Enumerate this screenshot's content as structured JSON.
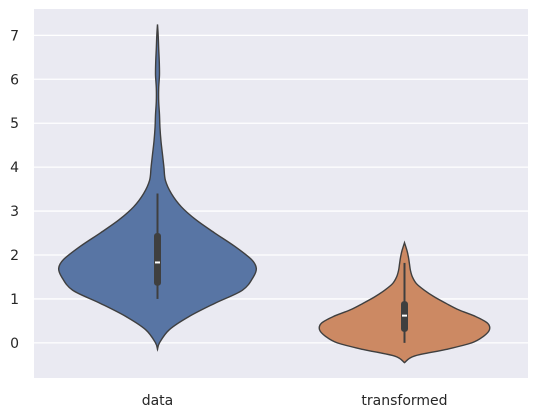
{
  "chart_data": {
    "type": "violin",
    "categories": [
      "data",
      "transformed"
    ],
    "ylim": [
      -0.8,
      7.6
    ],
    "yticks": [
      0,
      1,
      2,
      3,
      4,
      5,
      6,
      7
    ],
    "grid": true,
    "series": [
      {
        "category": "data",
        "color": "#5875a4",
        "range": [
          -0.15,
          7.25
        ],
        "whisker": [
          1.0,
          3.4
        ],
        "quartiles": [
          1.3,
          2.5
        ],
        "median": 1.83,
        "density_profile": [
          [
            -0.15,
            0.0
          ],
          [
            0.0,
            0.02
          ],
          [
            0.3,
            0.12
          ],
          [
            0.6,
            0.32
          ],
          [
            0.9,
            0.58
          ],
          [
            1.2,
            0.86
          ],
          [
            1.5,
            0.97
          ],
          [
            1.7,
            1.0
          ],
          [
            1.9,
            0.95
          ],
          [
            2.2,
            0.78
          ],
          [
            2.5,
            0.58
          ],
          [
            2.8,
            0.39
          ],
          [
            3.1,
            0.24
          ],
          [
            3.4,
            0.14
          ],
          [
            3.7,
            0.08
          ],
          [
            4.0,
            0.065
          ],
          [
            4.3,
            0.05
          ],
          [
            4.6,
            0.035
          ],
          [
            4.9,
            0.025
          ],
          [
            5.2,
            0.02
          ],
          [
            5.5,
            0.012
          ],
          [
            5.8,
            0.012
          ],
          [
            6.1,
            0.02
          ],
          [
            6.4,
            0.018
          ],
          [
            6.7,
            0.012
          ],
          [
            7.0,
            0.007
          ],
          [
            7.25,
            0.0
          ]
        ]
      },
      {
        "category": "transformed",
        "color": "#cc8963",
        "range": [
          -0.45,
          2.28
        ],
        "whisker": [
          0.0,
          1.82
        ],
        "quartiles": [
          0.25,
          0.95
        ],
        "median": 0.62,
        "density_profile": [
          [
            -0.45,
            0.0
          ],
          [
            -0.3,
            0.1
          ],
          [
            -0.15,
            0.42
          ],
          [
            0.0,
            0.68
          ],
          [
            0.15,
            0.8
          ],
          [
            0.3,
            0.86
          ],
          [
            0.45,
            0.84
          ],
          [
            0.6,
            0.72
          ],
          [
            0.75,
            0.55
          ],
          [
            0.9,
            0.42
          ],
          [
            1.05,
            0.3
          ],
          [
            1.2,
            0.2
          ],
          [
            1.35,
            0.12
          ],
          [
            1.5,
            0.08
          ],
          [
            1.65,
            0.06
          ],
          [
            1.8,
            0.05
          ],
          [
            1.95,
            0.04
          ],
          [
            2.1,
            0.025
          ],
          [
            2.28,
            0.0
          ]
        ]
      }
    ]
  }
}
